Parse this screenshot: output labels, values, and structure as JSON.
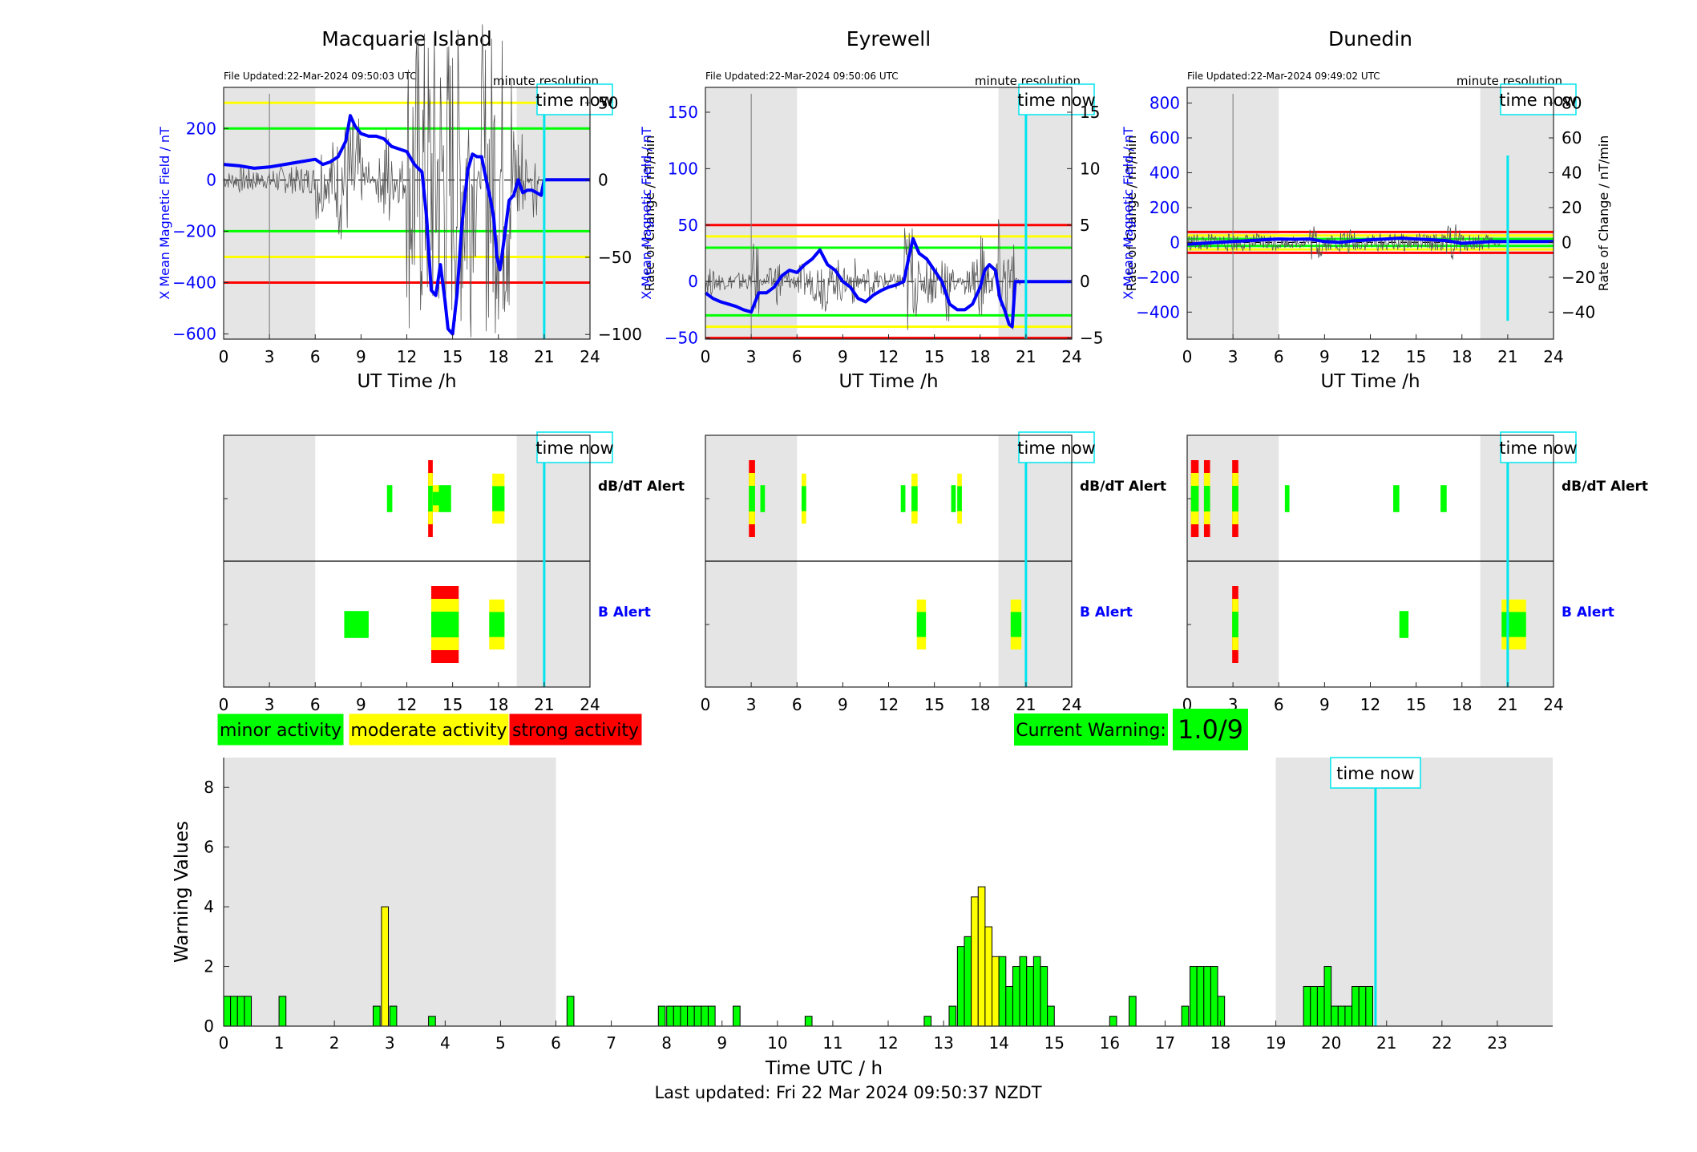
{
  "page": {
    "footer": "Last updated: Fri 22 Mar 2024 09:50:37 NZDT"
  },
  "colors": {
    "data_line": "#0000ff",
    "rate_line": "#555555",
    "green": "#00ff00",
    "yellow": "#ffff00",
    "red": "#ff0000",
    "cyan": "#00e5ee",
    "night_shade": "#e5e5e5",
    "axis_blue": "#0000ff"
  },
  "labels": {
    "time_now": "time now",
    "minute_resolution": "minute resolution",
    "ut_time": "UT Time /h",
    "x_field_label": "X Mean Magnetic Field / nT",
    "rate_label": "Rate of Change / nT/min",
    "dbdt_alert": "dB/dT Alert",
    "b_alert": "B Alert"
  },
  "legend": {
    "minor": "minor activity",
    "moderate": "moderate activity",
    "strong": "strong activity"
  },
  "current_warning": {
    "label": "Current Warning:",
    "value": "1.0/9"
  },
  "chart_data": [
    {
      "type": "line",
      "title": "Macquarie Island",
      "file_updated": "File Updated:22-Mar-2024 09:50:03 UTC",
      "xlabel": "UT Time /h",
      "ylabel": "X Mean Magnetic Field / nT",
      "y2label": "Rate of Change / nT/min",
      "xlim": [
        0,
        24
      ],
      "ylim": [
        -620,
        360
      ],
      "y2lim": [
        -103,
        60
      ],
      "xticks": [
        0,
        3,
        6,
        9,
        12,
        15,
        18,
        21,
        24
      ],
      "yticks": [
        -600,
        -400,
        -200,
        0,
        200
      ],
      "y2ticks": [
        -100,
        -50,
        0,
        50
      ],
      "night_shading": [
        [
          0,
          6
        ],
        [
          19.2,
          24
        ]
      ],
      "time_now": 21,
      "thresholds": [
        {
          "value": 300,
          "color": "yellow"
        },
        {
          "value": 200,
          "color": "green"
        },
        {
          "value": -200,
          "color": "green"
        },
        {
          "value": -300,
          "color": "yellow"
        },
        {
          "value": -400,
          "color": "red"
        }
      ],
      "series": [
        {
          "x": [
            0,
            1,
            2,
            3,
            4,
            5,
            6,
            6.5,
            7,
            7.5,
            8,
            8.3,
            8.6,
            9,
            9.5,
            10,
            10.5,
            11,
            11.5,
            12,
            12.5,
            13,
            13.3,
            13.6,
            13.9,
            14.2,
            14.5,
            14.7,
            15,
            15.3,
            15.6,
            16,
            16.3,
            16.6,
            16.9,
            17.2,
            17.5,
            17.7,
            17.9,
            18.1,
            18.4,
            18.7,
            19,
            19.3,
            19.6,
            19.9,
            20.2,
            20.5,
            20.8,
            21,
            22,
            23,
            24
          ],
          "values": [
            60,
            55,
            45,
            50,
            60,
            70,
            80,
            60,
            70,
            90,
            150,
            250,
            210,
            180,
            170,
            170,
            160,
            130,
            120,
            110,
            60,
            30,
            -150,
            -430,
            -450,
            -330,
            -470,
            -580,
            -600,
            -440,
            -180,
            40,
            100,
            90,
            90,
            0,
            -80,
            -150,
            -300,
            -350,
            -220,
            -80,
            -60,
            0,
            -50,
            -40,
            -40,
            -50,
            -60,
            0,
            0,
            0,
            0
          ]
        }
      ]
    },
    {
      "type": "line",
      "title": "Eyrewell",
      "file_updated": "File Updated:22-Mar-2024 09:50:06 UTC",
      "xlabel": "UT Time /h",
      "ylabel": "X Mean Magnetic Field / nT",
      "y2label": "Rate of Change / nT/min",
      "xlim": [
        0,
        24
      ],
      "ylim": [
        -51,
        172
      ],
      "y2lim": [
        -5.1,
        17.2
      ],
      "xticks": [
        0,
        3,
        6,
        9,
        12,
        15,
        18,
        21,
        24
      ],
      "yticks": [
        -50,
        0,
        50,
        100,
        150
      ],
      "y2ticks": [
        -5,
        0,
        5,
        10,
        15
      ],
      "night_shading": [
        [
          0,
          6
        ],
        [
          19.2,
          24
        ]
      ],
      "time_now": 21,
      "thresholds": [
        {
          "value": 50,
          "color": "red"
        },
        {
          "value": 40,
          "color": "yellow"
        },
        {
          "value": 30,
          "color": "green"
        },
        {
          "value": -30,
          "color": "green"
        },
        {
          "value": -40,
          "color": "yellow"
        },
        {
          "value": -50,
          "color": "red"
        }
      ],
      "series": [
        {
          "x": [
            0,
            0.5,
            1,
            1.5,
            2,
            2.5,
            3,
            3.5,
            4,
            4.5,
            5,
            5.5,
            6,
            6.5,
            7,
            7.5,
            8,
            8.5,
            9,
            9.5,
            10,
            10.5,
            11,
            11.5,
            12,
            12.5,
            13,
            13.3,
            13.6,
            14,
            14.5,
            15,
            15.5,
            16,
            16.5,
            17,
            17.5,
            18,
            18.3,
            18.6,
            19,
            19.3,
            19.6,
            19.9,
            20.1,
            20.3,
            21,
            22,
            23,
            24
          ],
          "values": [
            -10,
            -15,
            -18,
            -20,
            -22,
            -25,
            -27,
            -10,
            -10,
            -5,
            5,
            10,
            8,
            15,
            20,
            28,
            15,
            10,
            0,
            -5,
            -15,
            -18,
            -12,
            -8,
            -5,
            -3,
            0,
            20,
            38,
            25,
            20,
            10,
            0,
            -20,
            -25,
            -25,
            -20,
            -5,
            10,
            15,
            10,
            -15,
            -25,
            -38,
            -40,
            0,
            0,
            0,
            0,
            0
          ]
        }
      ]
    },
    {
      "type": "line",
      "title": "Dunedin",
      "file_updated": "File Updated:22-Mar-2024 09:49:02 UTC",
      "xlabel": "UT Time /h",
      "ylabel": "X Mean Magnetic Field / nT",
      "y2label": "Rate of Change / nT/min",
      "xlim": [
        0,
        24
      ],
      "ylim": [
        -555,
        890
      ],
      "y2lim": [
        -55.5,
        89
      ],
      "xticks": [
        0,
        3,
        6,
        9,
        12,
        15,
        18,
        21,
        24
      ],
      "yticks": [
        -400,
        -200,
        0,
        200,
        400,
        600,
        800
      ],
      "y2ticks": [
        -40,
        -20,
        0,
        20,
        40,
        60,
        80
      ],
      "night_shading": [
        [
          0,
          6
        ],
        [
          19.2,
          24
        ]
      ],
      "time_now": 21,
      "thresholds": [
        {
          "value": 60,
          "color": "red"
        },
        {
          "value": 40,
          "color": "yellow"
        },
        {
          "value": 20,
          "color": "green"
        },
        {
          "value": -20,
          "color": "green"
        },
        {
          "value": -40,
          "color": "yellow"
        },
        {
          "value": -60,
          "color": "red"
        }
      ],
      "series": [
        {
          "x": [
            0,
            1,
            2,
            3,
            4,
            5,
            6,
            7,
            8,
            9,
            10,
            11,
            12,
            13,
            14,
            15,
            16,
            17,
            18,
            19,
            20,
            21,
            22,
            23,
            24
          ],
          "values": [
            -10,
            -5,
            0,
            5,
            10,
            15,
            20,
            18,
            20,
            5,
            0,
            10,
            15,
            20,
            25,
            20,
            15,
            10,
            -5,
            0,
            5,
            5,
            5,
            5,
            5
          ]
        }
      ]
    },
    {
      "type": "bar",
      "title": "",
      "xlabel": "Time UTC / h",
      "ylabel": "Warning Values",
      "xlim": [
        0,
        24
      ],
      "ylim": [
        0,
        9
      ],
      "xticks": [
        0,
        1,
        2,
        3,
        4,
        5,
        6,
        7,
        8,
        9,
        10,
        11,
        12,
        13,
        14,
        15,
        16,
        17,
        18,
        19,
        20,
        21,
        22,
        23
      ],
      "yticks": [
        0,
        2,
        4,
        6,
        8
      ],
      "night_shading": [
        [
          0,
          6
        ],
        [
          19,
          24
        ]
      ],
      "time_now": 20.8,
      "bar_width_h": 0.125,
      "bars": [
        {
          "x": 0.0,
          "v": 1.0,
          "c": "green"
        },
        {
          "x": 0.125,
          "v": 1.0,
          "c": "green"
        },
        {
          "x": 0.25,
          "v": 1.0,
          "c": "green"
        },
        {
          "x": 0.375,
          "v": 1.0,
          "c": "green"
        },
        {
          "x": 1.0,
          "v": 1.0,
          "c": "green"
        },
        {
          "x": 2.7,
          "v": 0.67,
          "c": "green"
        },
        {
          "x": 2.85,
          "v": 4.0,
          "c": "yellow"
        },
        {
          "x": 3.0,
          "v": 0.67,
          "c": "green"
        },
        {
          "x": 3.7,
          "v": 0.33,
          "c": "green"
        },
        {
          "x": 6.2,
          "v": 1.0,
          "c": "green"
        },
        {
          "x": 7.85,
          "v": 0.67,
          "c": "green"
        },
        {
          "x": 8.0,
          "v": 0.67,
          "c": "green"
        },
        {
          "x": 8.125,
          "v": 0.67,
          "c": "green"
        },
        {
          "x": 8.25,
          "v": 0.67,
          "c": "green"
        },
        {
          "x": 8.375,
          "v": 0.67,
          "c": "green"
        },
        {
          "x": 8.5,
          "v": 0.67,
          "c": "green"
        },
        {
          "x": 8.625,
          "v": 0.67,
          "c": "green"
        },
        {
          "x": 8.75,
          "v": 0.67,
          "c": "green"
        },
        {
          "x": 9.2,
          "v": 0.67,
          "c": "green"
        },
        {
          "x": 10.5,
          "v": 0.33,
          "c": "green"
        },
        {
          "x": 12.65,
          "v": 0.33,
          "c": "green"
        },
        {
          "x": 13.1,
          "v": 0.67,
          "c": "green"
        },
        {
          "x": 13.25,
          "v": 2.67,
          "c": "green"
        },
        {
          "x": 13.375,
          "v": 3.0,
          "c": "green"
        },
        {
          "x": 13.5,
          "v": 4.33,
          "c": "yellow"
        },
        {
          "x": 13.625,
          "v": 4.67,
          "c": "yellow"
        },
        {
          "x": 13.75,
          "v": 3.33,
          "c": "yellow"
        },
        {
          "x": 13.875,
          "v": 2.33,
          "c": "yellow"
        },
        {
          "x": 14.0,
          "v": 2.33,
          "c": "green"
        },
        {
          "x": 14.125,
          "v": 1.33,
          "c": "green"
        },
        {
          "x": 14.25,
          "v": 2.0,
          "c": "green"
        },
        {
          "x": 14.375,
          "v": 2.33,
          "c": "green"
        },
        {
          "x": 14.5,
          "v": 2.0,
          "c": "green"
        },
        {
          "x": 14.625,
          "v": 2.33,
          "c": "green"
        },
        {
          "x": 14.75,
          "v": 2.0,
          "c": "green"
        },
        {
          "x": 14.875,
          "v": 0.67,
          "c": "green"
        },
        {
          "x": 16.0,
          "v": 0.33,
          "c": "green"
        },
        {
          "x": 16.35,
          "v": 1.0,
          "c": "green"
        },
        {
          "x": 17.3,
          "v": 0.67,
          "c": "green"
        },
        {
          "x": 17.45,
          "v": 2.0,
          "c": "green"
        },
        {
          "x": 17.575,
          "v": 2.0,
          "c": "green"
        },
        {
          "x": 17.7,
          "v": 2.0,
          "c": "green"
        },
        {
          "x": 17.825,
          "v": 2.0,
          "c": "green"
        },
        {
          "x": 17.95,
          "v": 1.0,
          "c": "green"
        },
        {
          "x": 19.5,
          "v": 1.33,
          "c": "green"
        },
        {
          "x": 19.625,
          "v": 1.33,
          "c": "green"
        },
        {
          "x": 19.75,
          "v": 1.33,
          "c": "green"
        },
        {
          "x": 19.875,
          "v": 2.0,
          "c": "green"
        },
        {
          "x": 20.0,
          "v": 0.67,
          "c": "green"
        },
        {
          "x": 20.125,
          "v": 0.67,
          "c": "green"
        },
        {
          "x": 20.25,
          "v": 0.67,
          "c": "green"
        },
        {
          "x": 20.375,
          "v": 1.33,
          "c": "green"
        },
        {
          "x": 20.5,
          "v": 1.33,
          "c": "green"
        },
        {
          "x": 20.625,
          "v": 1.33,
          "c": "green"
        }
      ]
    }
  ],
  "alerts": [
    {
      "station": "Macquarie Island",
      "dbdt": [
        {
          "x": 10.7,
          "w": 0.35,
          "h": 0.35,
          "levels": [
            "green"
          ]
        },
        {
          "x": 13.4,
          "w": 0.3,
          "h": 1.0,
          "levels": [
            "green",
            "yellow",
            "red"
          ]
        },
        {
          "x": 13.7,
          "w": 0.4,
          "h": 0.35,
          "levels": [
            "green",
            "yellow"
          ]
        },
        {
          "x": 14.1,
          "w": 0.8,
          "h": 0.35,
          "levels": [
            "green"
          ]
        },
        {
          "x": 17.6,
          "w": 0.8,
          "h": 0.65,
          "levels": [
            "green",
            "yellow"
          ]
        }
      ],
      "b": [
        {
          "x": 7.9,
          "w": 1.6,
          "h": 0.35,
          "levels": [
            "green"
          ]
        },
        {
          "x": 13.6,
          "w": 1.8,
          "h": 1.0,
          "levels": [
            "green",
            "yellow",
            "red"
          ]
        },
        {
          "x": 17.4,
          "w": 1.0,
          "h": 0.65,
          "levels": [
            "green",
            "yellow"
          ]
        }
      ]
    },
    {
      "station": "Eyrewell",
      "dbdt": [
        {
          "x": 2.85,
          "w": 0.4,
          "h": 1.0,
          "levels": [
            "green",
            "yellow",
            "red"
          ]
        },
        {
          "x": 3.6,
          "w": 0.3,
          "h": 0.35,
          "levels": [
            "green"
          ]
        },
        {
          "x": 6.3,
          "w": 0.3,
          "h": 0.65,
          "levels": [
            "green",
            "yellow"
          ]
        },
        {
          "x": 12.8,
          "w": 0.3,
          "h": 0.35,
          "levels": [
            "green"
          ]
        },
        {
          "x": 13.5,
          "w": 0.4,
          "h": 0.65,
          "levels": [
            "green",
            "yellow"
          ]
        },
        {
          "x": 16.1,
          "w": 0.3,
          "h": 0.35,
          "levels": [
            "green"
          ]
        },
        {
          "x": 16.5,
          "w": 0.3,
          "h": 0.65,
          "levels": [
            "green",
            "yellow"
          ]
        }
      ],
      "b": [
        {
          "x": 13.85,
          "w": 0.6,
          "h": 0.65,
          "levels": [
            "green",
            "yellow"
          ]
        },
        {
          "x": 20.0,
          "w": 0.7,
          "h": 0.65,
          "levels": [
            "green",
            "yellow"
          ]
        }
      ]
    },
    {
      "station": "Dunedin",
      "dbdt": [
        {
          "x": 0.25,
          "w": 0.5,
          "h": 1.0,
          "levels": [
            "green",
            "yellow",
            "red"
          ]
        },
        {
          "x": 1.1,
          "w": 0.4,
          "h": 1.0,
          "levels": [
            "green",
            "yellow",
            "red"
          ]
        },
        {
          "x": 2.95,
          "w": 0.4,
          "h": 1.0,
          "levels": [
            "green",
            "yellow",
            "red"
          ]
        },
        {
          "x": 6.4,
          "w": 0.3,
          "h": 0.35,
          "levels": [
            "green"
          ]
        },
        {
          "x": 13.5,
          "w": 0.4,
          "h": 0.35,
          "levels": [
            "green"
          ]
        },
        {
          "x": 16.6,
          "w": 0.4,
          "h": 0.35,
          "levels": [
            "green"
          ]
        }
      ],
      "b": [
        {
          "x": 2.95,
          "w": 0.4,
          "h": 1.0,
          "levels": [
            "green",
            "yellow",
            "red"
          ]
        },
        {
          "x": 13.9,
          "w": 0.6,
          "h": 0.35,
          "levels": [
            "green"
          ]
        },
        {
          "x": 20.6,
          "w": 1.6,
          "h": 0.65,
          "levels": [
            "green",
            "yellow"
          ]
        }
      ]
    }
  ]
}
